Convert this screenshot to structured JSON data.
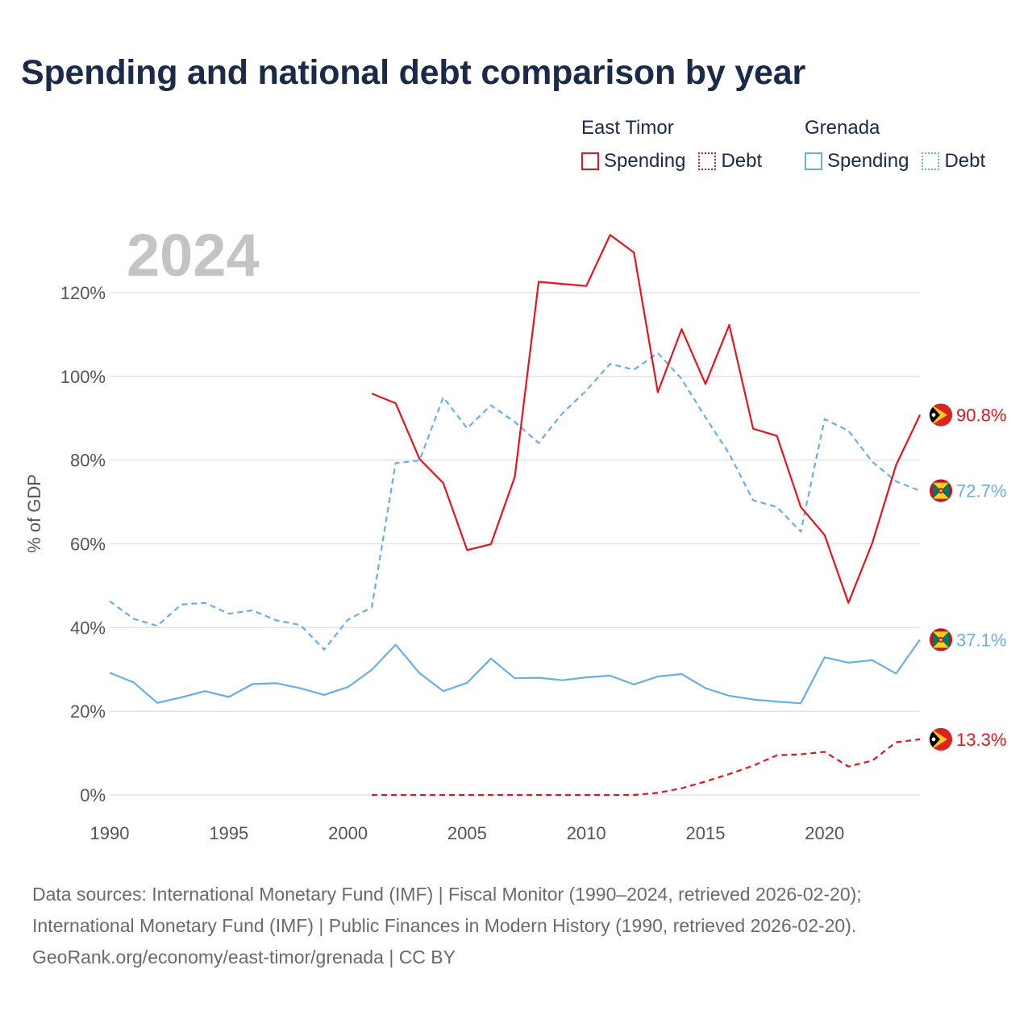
{
  "title": "Spending and national debt comparison by year",
  "year_label": "2024",
  "legend": {
    "groups": [
      {
        "country": "East Timor",
        "color": "#e8131c",
        "items": [
          {
            "label": "Spending",
            "style": "solid"
          },
          {
            "label": "Debt",
            "style": "dotted"
          }
        ]
      },
      {
        "country": "Grenada",
        "color": "#6aaee6",
        "items": [
          {
            "label": "Spending",
            "style": "solid"
          },
          {
            "label": "Debt",
            "style": "dotted"
          }
        ]
      }
    ]
  },
  "footer": {
    "line1": "Data sources: International Monetary Fund (IMF) | Fiscal Monitor (1990–2024, retrieved 2026-02-20);",
    "line2": "International Monetary Fund (IMF) | Public Finances in Modern History (1990, retrieved 2026-02-20).",
    "line3": "GeoRank.org/economy/east-timor/grenada | CC BY"
  },
  "chart_data": {
    "type": "line",
    "ylabel": "% of GDP",
    "xlim": [
      1990,
      2024
    ],
    "ylim": [
      0,
      120
    ],
    "xticks": [
      1990,
      1995,
      2000,
      2005,
      2010,
      2015,
      2020
    ],
    "yticks": [
      0,
      20,
      40,
      60,
      80,
      100,
      120
    ],
    "ytick_labels": [
      "0%",
      "20%",
      "40%",
      "60%",
      "80%",
      "100%",
      "120%"
    ],
    "grid": true,
    "series": [
      {
        "name": "Grenada Debt",
        "country": "Grenada",
        "metric": "Debt",
        "color": "#6aaee6",
        "dash": "dashed",
        "x": [
          1990,
          1991,
          1992,
          1993,
          1994,
          1995,
          1996,
          1997,
          1998,
          1999,
          2000,
          2001,
          2002,
          2003,
          2004,
          2005,
          2006,
          2007,
          2008,
          2009,
          2010,
          2011,
          2012,
          2013,
          2014,
          2015,
          2016,
          2017,
          2018,
          2019,
          2020,
          2021,
          2022,
          2023,
          2024
        ],
        "y": [
          46.3,
          42.1,
          40.4,
          45.5,
          45.9,
          43.3,
          44.1,
          41.7,
          40.6,
          34.7,
          41.9,
          44.8,
          79.3,
          79.9,
          95.0,
          87.6,
          93.1,
          89.1,
          84.1,
          91.2,
          96.6,
          103.0,
          101.6,
          105.6,
          99.4,
          90.2,
          81.5,
          70.4,
          68.8,
          62.9,
          89.8,
          87.0,
          79.6,
          74.9,
          72.7
        ],
        "end_label": "72.7%",
        "flag": "grenada"
      },
      {
        "name": "Grenada Spending",
        "country": "Grenada",
        "metric": "Spending",
        "color": "#6aaee6",
        "dash": "solid",
        "x": [
          1990,
          1991,
          1992,
          1993,
          1994,
          1995,
          1996,
          1997,
          1998,
          1999,
          2000,
          2001,
          2002,
          2003,
          2004,
          2005,
          2006,
          2007,
          2008,
          2009,
          2010,
          2011,
          2012,
          2013,
          2014,
          2015,
          2016,
          2017,
          2018,
          2019,
          2020,
          2021,
          2022,
          2023,
          2024
        ],
        "y": [
          29.2,
          26.9,
          22.0,
          23.3,
          24.8,
          23.4,
          26.5,
          26.7,
          25.5,
          23.9,
          25.8,
          29.9,
          35.9,
          29.1,
          24.8,
          26.8,
          32.6,
          27.9,
          28.0,
          27.4,
          28.1,
          28.5,
          26.4,
          28.3,
          28.9,
          25.5,
          23.7,
          22.8,
          22.3,
          21.9,
          32.9,
          31.6,
          32.2,
          29.0,
          37.1
        ],
        "end_label": "37.1%",
        "flag": "grenada"
      },
      {
        "name": "East Timor Spending",
        "country": "East Timor",
        "metric": "Spending",
        "color": "#e8131c",
        "dash": "solid",
        "x": [
          2001,
          2002,
          2003,
          2004,
          2005,
          2006,
          2007,
          2008,
          2009,
          2010,
          2011,
          2012,
          2013,
          2014,
          2015,
          2016,
          2017,
          2018,
          2019,
          2020,
          2021,
          2022,
          2023,
          2024
        ],
        "y": [
          95.9,
          93.6,
          80.3,
          74.5,
          58.5,
          59.9,
          76.0,
          122.6,
          122.1,
          121.6,
          133.8,
          129.6,
          96.2,
          111.3,
          98.2,
          112.3,
          87.5,
          85.8,
          68.8,
          62.1,
          45.9,
          60.2,
          78.8,
          90.8
        ],
        "end_label": "90.8%",
        "flag": "east-timor"
      },
      {
        "name": "East Timor Debt",
        "country": "East Timor",
        "metric": "Debt",
        "color": "#e8131c",
        "dash": "dashed",
        "x": [
          2001,
          2002,
          2003,
          2004,
          2005,
          2006,
          2007,
          2008,
          2009,
          2010,
          2011,
          2012,
          2013,
          2014,
          2015,
          2016,
          2017,
          2018,
          2019,
          2020,
          2021,
          2022,
          2023,
          2024
        ],
        "y": [
          0,
          0,
          0,
          0,
          0,
          0,
          0,
          0,
          0,
          0,
          0,
          0,
          0.5,
          1.6,
          3.2,
          5.0,
          7.0,
          9.5,
          9.7,
          10.3,
          6.8,
          8.2,
          12.6,
          13.3
        ],
        "end_label": "13.3%",
        "flag": "east-timor"
      }
    ]
  }
}
